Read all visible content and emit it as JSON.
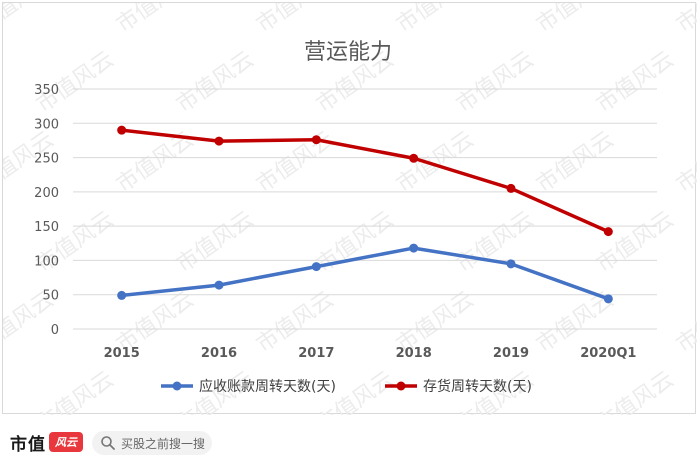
{
  "chart_data": {
    "type": "line",
    "title": "营运能力",
    "categories": [
      "2015",
      "2016",
      "2017",
      "2018",
      "2019",
      "2020Q1"
    ],
    "series": [
      {
        "name": "应收账款周转天数(天)",
        "color": "#4472c4",
        "values": [
          49,
          64,
          91,
          118,
          95,
          44
        ]
      },
      {
        "name": "存货周转天数(天)",
        "color": "#c00000",
        "values": [
          290,
          274,
          276,
          249,
          205,
          142
        ]
      }
    ],
    "ylim": [
      0,
      350
    ],
    "yticks": [
      0,
      50,
      100,
      150,
      200,
      250,
      300,
      350
    ],
    "grid": true,
    "legend": "bottom"
  },
  "footer": {
    "brand_name": "市值",
    "brand_logo_text": "风云",
    "search_placeholder": "买股之前搜一搜"
  },
  "watermark": {
    "text": "市值风云",
    "color": "#ececec"
  },
  "icons": {
    "search": "search-icon"
  }
}
